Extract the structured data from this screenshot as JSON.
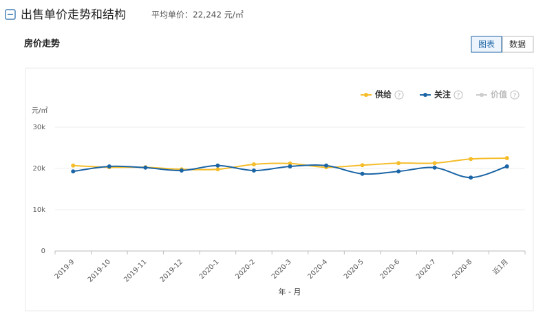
{
  "header": {
    "title": "出售单价走势和结构",
    "average_price": "平均单价：22,242 元/㎡"
  },
  "section_title": "房价走势",
  "tabs": [
    "图表",
    "数据"
  ],
  "active_tab": 0,
  "chart_data": {
    "type": "line",
    "y_unit": "元/㎡",
    "x_label": "年 - 月",
    "categories": [
      "2019-9",
      "2019-10",
      "2019-11",
      "2019-12",
      "2020-1",
      "2020-2",
      "2020-3",
      "2020-4",
      "2020-5",
      "2020-6",
      "2020-7",
      "2020-8",
      "近1月"
    ],
    "series": [
      {
        "name": "供给",
        "color": "#f5bd2a",
        "visible": true,
        "values": [
          20700,
          20300,
          20300,
          19800,
          19800,
          21000,
          21200,
          20300,
          20800,
          21300,
          21300,
          22300,
          22500
        ]
      },
      {
        "name": "关注",
        "color": "#1b65a6",
        "visible": true,
        "values": [
          19300,
          20500,
          20200,
          19500,
          20700,
          19500,
          20500,
          20700,
          18700,
          19300,
          20200,
          17800,
          20500
        ]
      },
      {
        "name": "价值",
        "color": "#cccccc",
        "visible": false,
        "values": [
          null,
          null,
          null,
          null,
          null,
          null,
          null,
          null,
          null,
          null,
          null,
          null,
          null
        ]
      }
    ],
    "ylim": [
      0,
      30000
    ],
    "yticks": [
      0,
      {
        "value": 10000,
        "label": "10k"
      },
      {
        "value": 20000,
        "label": "20k"
      },
      {
        "value": 30000,
        "label": "30k"
      }
    ],
    "grid": true,
    "legend": "top-right"
  }
}
